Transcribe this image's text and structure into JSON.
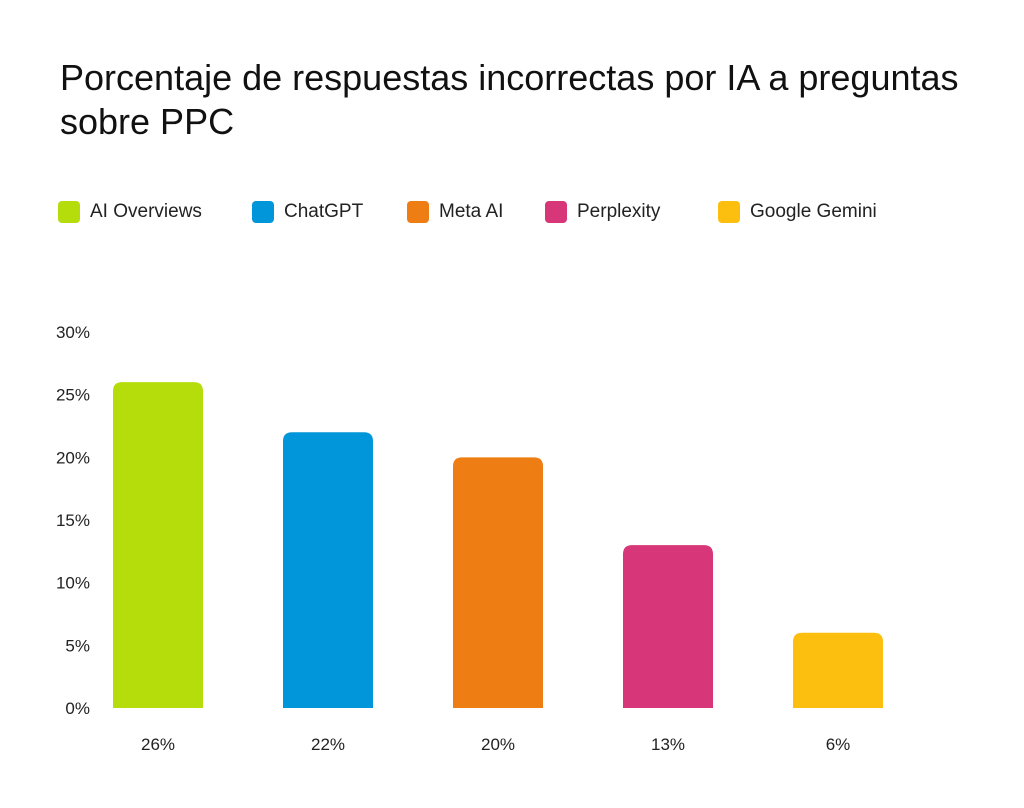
{
  "chart_data": {
    "type": "bar",
    "title": "Porcentaje de respuestas incorrectas por IA a preguntas sobre PPC",
    "categories": [
      "AI Overviews",
      "ChatGPT",
      "Meta AI",
      "Perplexity",
      "Google Gemini"
    ],
    "values": [
      26,
      22,
      20,
      13,
      6
    ],
    "data_labels": [
      "26%",
      "22%",
      "20%",
      "13%",
      "6%"
    ],
    "colors": [
      "#b5dd0b",
      "#0096d9",
      "#ee7d14",
      "#d73678",
      "#fdbf0f"
    ],
    "ylim": [
      0,
      30
    ],
    "yticks": [
      0,
      5,
      10,
      15,
      20,
      25,
      30
    ],
    "ytick_labels": [
      "0%",
      "5%",
      "10%",
      "15%",
      "20%",
      "25%",
      "30%"
    ],
    "xlabel": "",
    "ylabel": "",
    "grid": false,
    "legend_position": "top-left"
  }
}
